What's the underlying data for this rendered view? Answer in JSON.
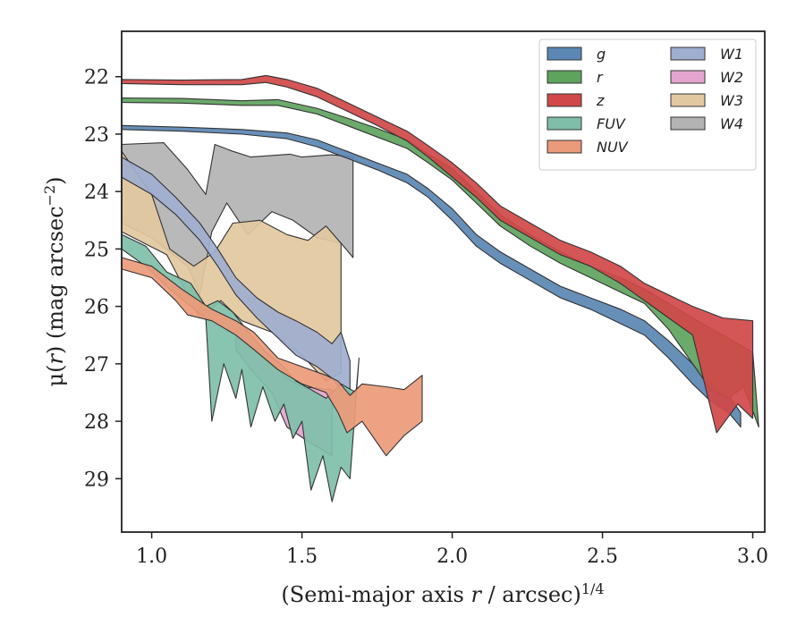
{
  "chart_data": {
    "type": "area",
    "title": "",
    "xlabel_main": "(Semi-major axis ",
    "xlabel_var": "r",
    "xlabel_rest": " / arcsec)",
    "xlabel_sup": "1/4",
    "ylabel_pre": "μ(",
    "ylabel_var": "r",
    "ylabel_mid": ") (mag arcsec",
    "ylabel_sup": "−2",
    "ylabel_post": ")",
    "xlim": [
      0.9,
      3.04
    ],
    "ylim": [
      29.93,
      21.21
    ],
    "y_inverted": true,
    "x_ticks": [
      1.0,
      1.5,
      2.0,
      2.5,
      3.0
    ],
    "x_tick_labels": [
      "1.0",
      "1.5",
      "2.0",
      "2.5",
      "3.0"
    ],
    "y_ticks": [
      22,
      23,
      24,
      25,
      26,
      27,
      28,
      29
    ],
    "y_tick_labels": [
      "22",
      "23",
      "24",
      "25",
      "26",
      "27",
      "28",
      "29"
    ],
    "grid": false,
    "legend_position": "top-right",
    "legend_columns": 2,
    "series": [
      {
        "name": "W4",
        "color": "#b3b3b3",
        "upper": [
          [
            0.9,
            23.18
          ],
          [
            1.04,
            23.15
          ],
          [
            1.12,
            23.62
          ],
          [
            1.18,
            24.05
          ],
          [
            1.21,
            23.18
          ],
          [
            1.27,
            23.3
          ],
          [
            1.33,
            23.4
          ],
          [
            1.46,
            23.35
          ],
          [
            1.5,
            23.4
          ],
          [
            1.6,
            23.36
          ],
          [
            1.67,
            23.4
          ]
        ],
        "lower": [
          [
            0.9,
            24.55
          ],
          [
            1.0,
            24.8
          ],
          [
            1.12,
            25.3
          ],
          [
            1.16,
            25.8
          ],
          [
            1.2,
            24.7
          ],
          [
            1.25,
            24.2
          ],
          [
            1.32,
            24.75
          ],
          [
            1.4,
            24.35
          ],
          [
            1.47,
            24.5
          ],
          [
            1.55,
            24.8
          ],
          [
            1.63,
            24.9
          ],
          [
            1.67,
            25.15
          ]
        ]
      },
      {
        "name": "W3",
        "color": "#e2c8a0",
        "upper": [
          [
            0.9,
            23.3
          ],
          [
            1.0,
            24.05
          ],
          [
            1.06,
            25.0
          ],
          [
            1.14,
            25.3
          ],
          [
            1.21,
            25.05
          ],
          [
            1.27,
            24.55
          ],
          [
            1.36,
            24.5
          ],
          [
            1.45,
            24.75
          ],
          [
            1.52,
            24.85
          ],
          [
            1.58,
            24.6
          ],
          [
            1.63,
            24.9
          ]
        ],
        "lower": [
          [
            0.9,
            24.7
          ],
          [
            1.05,
            25.1
          ],
          [
            1.16,
            26.2
          ],
          [
            1.23,
            25.9
          ],
          [
            1.3,
            26.25
          ],
          [
            1.4,
            26.45
          ],
          [
            1.5,
            26.85
          ],
          [
            1.58,
            27.3
          ],
          [
            1.63,
            27.15
          ]
        ]
      },
      {
        "name": "W1",
        "color": "#a0aecf",
        "upper": [
          [
            0.9,
            23.4
          ],
          [
            1.0,
            23.7
          ],
          [
            1.08,
            24.1
          ],
          [
            1.16,
            24.55
          ],
          [
            1.22,
            25.0
          ],
          [
            1.28,
            25.5
          ],
          [
            1.35,
            25.85
          ],
          [
            1.42,
            26.1
          ],
          [
            1.48,
            26.25
          ],
          [
            1.55,
            26.45
          ],
          [
            1.6,
            26.65
          ],
          [
            1.63,
            26.45
          ],
          [
            1.66,
            26.95
          ]
        ],
        "lower": [
          [
            0.9,
            23.75
          ],
          [
            1.0,
            24.05
          ],
          [
            1.08,
            24.4
          ],
          [
            1.16,
            24.85
          ],
          [
            1.22,
            25.3
          ],
          [
            1.28,
            25.8
          ],
          [
            1.35,
            26.2
          ],
          [
            1.42,
            26.55
          ],
          [
            1.48,
            26.85
          ],
          [
            1.55,
            27.05
          ],
          [
            1.6,
            27.25
          ],
          [
            1.63,
            27.45
          ],
          [
            1.66,
            27.6
          ]
        ]
      },
      {
        "name": "W2",
        "color": "#e3a5cf",
        "upper": [
          [
            1.28,
            26.4
          ],
          [
            1.33,
            26.7
          ],
          [
            1.4,
            27.0
          ],
          [
            1.45,
            27.25
          ],
          [
            1.5,
            27.4
          ],
          [
            1.6,
            27.45
          ]
        ],
        "lower": [
          [
            1.28,
            26.75
          ],
          [
            1.33,
            27.1
          ],
          [
            1.4,
            27.5
          ],
          [
            1.45,
            28.1
          ],
          [
            1.52,
            28.35
          ],
          [
            1.6,
            28.6
          ]
        ]
      },
      {
        "name": "FUV",
        "color": "#7fbfaa",
        "upper": [
          [
            0.9,
            24.75
          ],
          [
            0.98,
            24.95
          ],
          [
            1.05,
            25.4
          ],
          [
            1.13,
            25.6
          ],
          [
            1.18,
            26.0
          ],
          [
            1.22,
            25.9
          ],
          [
            1.27,
            26.1
          ],
          [
            1.33,
            26.5
          ],
          [
            1.38,
            26.8
          ],
          [
            1.43,
            27.0
          ],
          [
            1.48,
            27.3
          ],
          [
            1.53,
            27.45
          ],
          [
            1.58,
            27.6
          ],
          [
            1.63,
            27.35
          ],
          [
            1.68,
            27.5
          ]
        ],
        "lower": [
          [
            0.9,
            25.0
          ],
          [
            0.98,
            25.3
          ],
          [
            1.06,
            25.7
          ],
          [
            1.13,
            26.0
          ],
          [
            1.18,
            26.2
          ],
          [
            1.2,
            28.0
          ],
          [
            1.24,
            27.0
          ],
          [
            1.28,
            27.6
          ],
          [
            1.3,
            27.1
          ],
          [
            1.33,
            28.1
          ],
          [
            1.37,
            27.4
          ],
          [
            1.41,
            28.0
          ],
          [
            1.44,
            27.7
          ],
          [
            1.47,
            28.3
          ],
          [
            1.5,
            28.0
          ],
          [
            1.53,
            29.2
          ],
          [
            1.57,
            28.6
          ],
          [
            1.6,
            29.4
          ],
          [
            1.63,
            28.8
          ],
          [
            1.66,
            29.0
          ],
          [
            1.69,
            26.9
          ]
        ]
      },
      {
        "name": "NUV",
        "color": "#eb9a7a",
        "upper": [
          [
            0.9,
            25.15
          ],
          [
            1.0,
            25.3
          ],
          [
            1.1,
            25.7
          ],
          [
            1.2,
            26.05
          ],
          [
            1.28,
            26.25
          ],
          [
            1.34,
            26.45
          ],
          [
            1.42,
            26.9
          ],
          [
            1.5,
            27.05
          ],
          [
            1.58,
            27.2
          ],
          [
            1.62,
            27.3
          ],
          [
            1.66,
            27.55
          ],
          [
            1.7,
            27.35
          ],
          [
            1.78,
            27.4
          ],
          [
            1.84,
            27.45
          ],
          [
            1.9,
            27.2
          ]
        ],
        "lower": [
          [
            0.9,
            25.35
          ],
          [
            1.0,
            25.5
          ],
          [
            1.08,
            25.9
          ],
          [
            1.12,
            26.15
          ],
          [
            1.2,
            26.25
          ],
          [
            1.28,
            26.5
          ],
          [
            1.34,
            26.75
          ],
          [
            1.42,
            27.1
          ],
          [
            1.5,
            27.35
          ],
          [
            1.58,
            27.5
          ],
          [
            1.62,
            27.85
          ],
          [
            1.65,
            28.2
          ],
          [
            1.7,
            28.0
          ],
          [
            1.78,
            28.6
          ],
          [
            1.84,
            28.25
          ],
          [
            1.9,
            28.0
          ]
        ]
      },
      {
        "name": "g",
        "color": "#5a87b3",
        "upper": [
          [
            0.9,
            22.85
          ],
          [
            1.1,
            22.88
          ],
          [
            1.3,
            22.92
          ],
          [
            1.45,
            22.98
          ],
          [
            1.55,
            23.1
          ],
          [
            1.65,
            23.3
          ],
          [
            1.75,
            23.5
          ],
          [
            1.85,
            23.7
          ],
          [
            1.92,
            23.95
          ],
          [
            2.0,
            24.3
          ],
          [
            2.08,
            24.75
          ],
          [
            2.16,
            25.05
          ],
          [
            2.26,
            25.35
          ],
          [
            2.36,
            25.65
          ],
          [
            2.46,
            25.85
          ],
          [
            2.56,
            26.05
          ],
          [
            2.64,
            26.25
          ],
          [
            2.72,
            26.6
          ],
          [
            2.8,
            27.0
          ],
          [
            2.86,
            27.3
          ],
          [
            2.92,
            27.55
          ],
          [
            2.96,
            27.85
          ]
        ],
        "lower": [
          [
            0.9,
            22.92
          ],
          [
            1.1,
            22.95
          ],
          [
            1.3,
            23.0
          ],
          [
            1.45,
            23.08
          ],
          [
            1.55,
            23.22
          ],
          [
            1.65,
            23.42
          ],
          [
            1.75,
            23.62
          ],
          [
            1.85,
            23.85
          ],
          [
            1.92,
            24.1
          ],
          [
            2.0,
            24.5
          ],
          [
            2.08,
            24.95
          ],
          [
            2.16,
            25.25
          ],
          [
            2.26,
            25.55
          ],
          [
            2.36,
            25.85
          ],
          [
            2.46,
            26.05
          ],
          [
            2.56,
            26.3
          ],
          [
            2.64,
            26.5
          ],
          [
            2.72,
            26.9
          ],
          [
            2.8,
            27.35
          ],
          [
            2.86,
            27.65
          ],
          [
            2.92,
            27.85
          ],
          [
            2.96,
            28.1
          ]
        ]
      },
      {
        "name": "r",
        "color": "#5ea35e",
        "upper": [
          [
            0.9,
            22.37
          ],
          [
            1.1,
            22.38
          ],
          [
            1.3,
            22.42
          ],
          [
            1.42,
            22.4
          ],
          [
            1.55,
            22.55
          ],
          [
            1.65,
            22.72
          ],
          [
            1.75,
            22.9
          ],
          [
            1.85,
            23.1
          ],
          [
            1.92,
            23.35
          ],
          [
            2.0,
            23.6
          ],
          [
            2.08,
            24.0
          ],
          [
            2.16,
            24.4
          ],
          [
            2.26,
            24.75
          ],
          [
            2.36,
            25.05
          ],
          [
            2.46,
            25.3
          ],
          [
            2.56,
            25.5
          ],
          [
            2.64,
            25.7
          ],
          [
            2.72,
            25.95
          ],
          [
            2.8,
            26.2
          ],
          [
            2.9,
            26.5
          ],
          [
            3.0,
            26.8
          ]
        ],
        "lower": [
          [
            0.9,
            22.45
          ],
          [
            1.1,
            22.46
          ],
          [
            1.3,
            22.5
          ],
          [
            1.42,
            22.5
          ],
          [
            1.55,
            22.65
          ],
          [
            1.65,
            22.85
          ],
          [
            1.75,
            23.05
          ],
          [
            1.85,
            23.25
          ],
          [
            1.92,
            23.5
          ],
          [
            2.0,
            23.8
          ],
          [
            2.08,
            24.2
          ],
          [
            2.16,
            24.6
          ],
          [
            2.26,
            24.95
          ],
          [
            2.36,
            25.25
          ],
          [
            2.46,
            25.5
          ],
          [
            2.56,
            25.75
          ],
          [
            2.64,
            25.95
          ],
          [
            2.72,
            26.4
          ],
          [
            2.8,
            27.0
          ],
          [
            2.86,
            27.45
          ],
          [
            2.92,
            27.6
          ],
          [
            2.97,
            27.4
          ],
          [
            3.02,
            28.1
          ]
        ]
      },
      {
        "name": "z",
        "color": "#d04848",
        "upper": [
          [
            0.9,
            22.05
          ],
          [
            1.1,
            22.06
          ],
          [
            1.3,
            22.05
          ],
          [
            1.38,
            21.98
          ],
          [
            1.45,
            22.05
          ],
          [
            1.55,
            22.2
          ],
          [
            1.65,
            22.45
          ],
          [
            1.75,
            22.7
          ],
          [
            1.85,
            22.95
          ],
          [
            1.92,
            23.2
          ],
          [
            2.0,
            23.5
          ],
          [
            2.08,
            23.85
          ],
          [
            2.16,
            24.25
          ],
          [
            2.26,
            24.55
          ],
          [
            2.36,
            24.85
          ],
          [
            2.46,
            25.05
          ],
          [
            2.56,
            25.3
          ],
          [
            2.64,
            25.6
          ],
          [
            2.72,
            25.8
          ],
          [
            2.8,
            26.0
          ],
          [
            2.9,
            26.2
          ],
          [
            3.0,
            26.25
          ]
        ],
        "lower": [
          [
            0.9,
            22.12
          ],
          [
            1.1,
            22.14
          ],
          [
            1.3,
            22.14
          ],
          [
            1.38,
            22.1
          ],
          [
            1.45,
            22.18
          ],
          [
            1.55,
            22.35
          ],
          [
            1.65,
            22.6
          ],
          [
            1.75,
            22.85
          ],
          [
            1.85,
            23.12
          ],
          [
            1.92,
            23.4
          ],
          [
            2.0,
            23.75
          ],
          [
            2.08,
            24.1
          ],
          [
            2.16,
            24.5
          ],
          [
            2.26,
            24.8
          ],
          [
            2.36,
            25.1
          ],
          [
            2.46,
            25.3
          ],
          [
            2.56,
            25.6
          ],
          [
            2.64,
            25.9
          ],
          [
            2.72,
            26.2
          ],
          [
            2.8,
            26.5
          ],
          [
            2.88,
            28.2
          ],
          [
            2.95,
            27.7
          ],
          [
            3.0,
            27.95
          ]
        ]
      }
    ],
    "legend": [
      {
        "label": "g",
        "color": "#5a87b3"
      },
      {
        "label": "r",
        "color": "#5ea35e"
      },
      {
        "label": "z",
        "color": "#d04848"
      },
      {
        "label": "FUV",
        "color": "#7fbfaa"
      },
      {
        "label": "NUV",
        "color": "#eb9a7a"
      },
      {
        "label": "W1",
        "color": "#a0aecf"
      },
      {
        "label": "W2",
        "color": "#e3a5cf"
      },
      {
        "label": "W3",
        "color": "#e2c8a0"
      },
      {
        "label": "W4",
        "color": "#b3b3b3"
      }
    ]
  }
}
